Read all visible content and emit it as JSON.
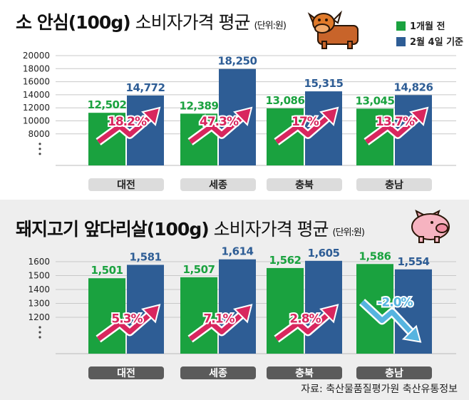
{
  "colors": {
    "prev": "#1aa23f",
    "curr": "#2e5d95",
    "up": "#d8265e",
    "down": "#56b4e0"
  },
  "legend": {
    "prev_label": "1개월 전",
    "curr_label": "2월 4일 기준"
  },
  "beef": {
    "title_main": "소 안심(100g)",
    "title_sub": " 소비자가격 평균",
    "unit": "(단위:원)",
    "icon": "cow-icon"
  },
  "pork": {
    "title_main": "돼지고기 앞다리살(100g)",
    "title_sub": " 소비자가격 평균",
    "unit": "(단위:원)",
    "icon": "pig-icon"
  },
  "source": "자료: 축산물품질평가원 축산유통정보",
  "chart_data": [
    {
      "type": "bar",
      "title": "소 안심(100g) 소비자가격 평균",
      "categories": [
        "대전",
        "세종",
        "충북",
        "충남"
      ],
      "series": [
        {
          "name": "1개월 전",
          "values": [
            12502,
            12389,
            13086,
            13045
          ],
          "labels": [
            "12,502",
            "12,389",
            "13,086",
            "13,045"
          ]
        },
        {
          "name": "2월 4일 기준",
          "values": [
            14772,
            18250,
            15315,
            14826
          ],
          "labels": [
            "14,772",
            "18,250",
            "15,315",
            "14,826"
          ]
        }
      ],
      "changes": [
        "18.2%",
        "47.3%",
        "17%",
        "13.7%"
      ],
      "directions": [
        "up",
        "up",
        "up",
        "up"
      ],
      "yticks": [
        "20000",
        "18000",
        "16000",
        "14000",
        "12000",
        "10000",
        "8000"
      ],
      "ylim": [
        5600,
        20000
      ],
      "unit": "(단위:원)"
    },
    {
      "type": "bar",
      "title": "돼지고기 앞다리살(100g) 소비자가격 평균",
      "categories": [
        "대전",
        "세종",
        "충북",
        "충남"
      ],
      "series": [
        {
          "name": "1개월 전",
          "values": [
            1501,
            1507,
            1562,
            1586
          ],
          "labels": [
            "1,501",
            "1,507",
            "1,562",
            "1,586"
          ]
        },
        {
          "name": "2월 4일 기준",
          "values": [
            1581,
            1614,
            1605,
            1554
          ],
          "labels": [
            "1,581",
            "1,614",
            "1,605",
            "1,554"
          ]
        }
      ],
      "changes": [
        "5.3%",
        "7.1%",
        "2.8%",
        "-2.0%"
      ],
      "directions": [
        "up",
        "up",
        "up",
        "down"
      ],
      "yticks": [
        "1600",
        "1500",
        "1400",
        "1300",
        "1200"
      ],
      "ylim": [
        1050,
        1600
      ],
      "unit": "(단위:원)"
    }
  ]
}
